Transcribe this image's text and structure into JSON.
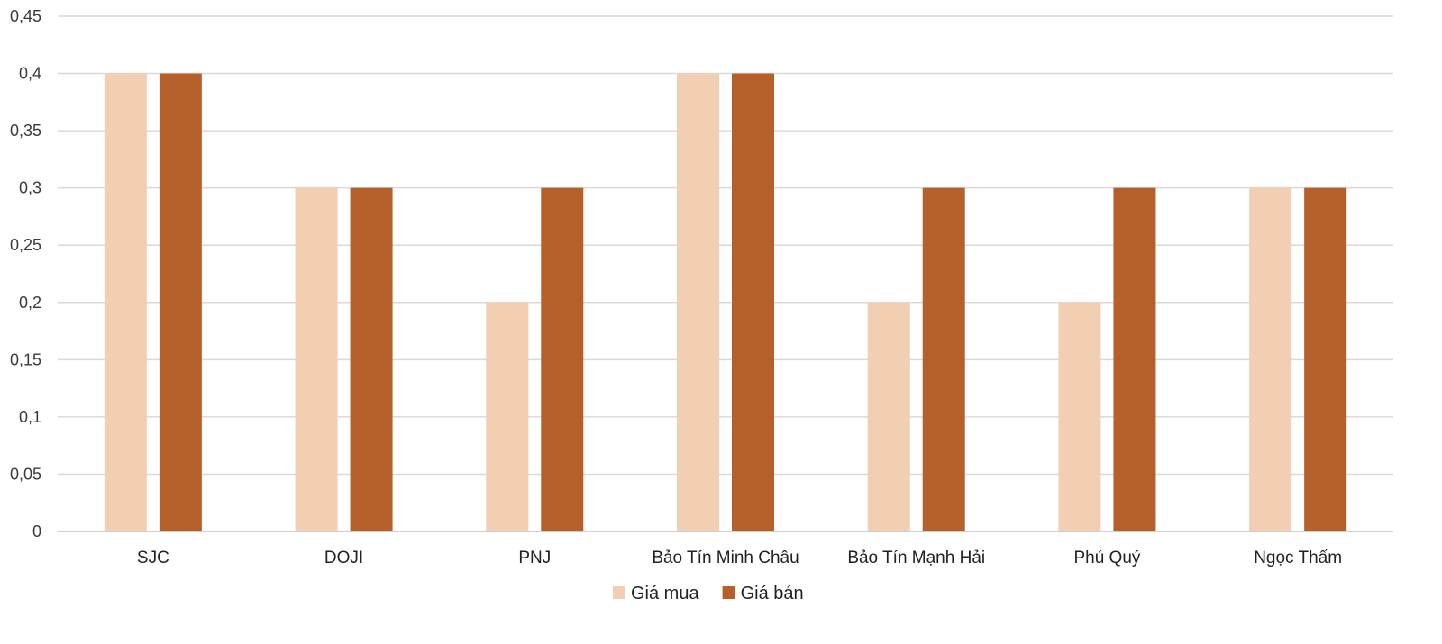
{
  "chart_data": {
    "type": "bar",
    "title": "",
    "xlabel": "",
    "ylabel": "",
    "categories": [
      "SJC",
      "DOJI",
      "PNJ",
      "Bảo Tín Minh Châu",
      "Bảo Tín Mạnh Hải",
      "Phú Quý",
      "Ngọc Thẩm"
    ],
    "series": [
      {
        "name": "Giá mua",
        "color": "#F2CEB2",
        "values": [
          0.4,
          0.3,
          0.2,
          0.4,
          0.2,
          0.2,
          0.3
        ]
      },
      {
        "name": "Giá bán",
        "color": "#B5602B",
        "values": [
          0.4,
          0.3,
          0.3,
          0.4,
          0.3,
          0.3,
          0.3
        ]
      }
    ],
    "ylim": [
      0,
      0.45
    ],
    "yticks": [
      "0",
      "0,05",
      "0,1",
      "0,15",
      "0,2",
      "0,25",
      "0,3",
      "0,35",
      "0,4",
      "0,45"
    ],
    "grid": true,
    "legend_position": "bottom-center"
  }
}
